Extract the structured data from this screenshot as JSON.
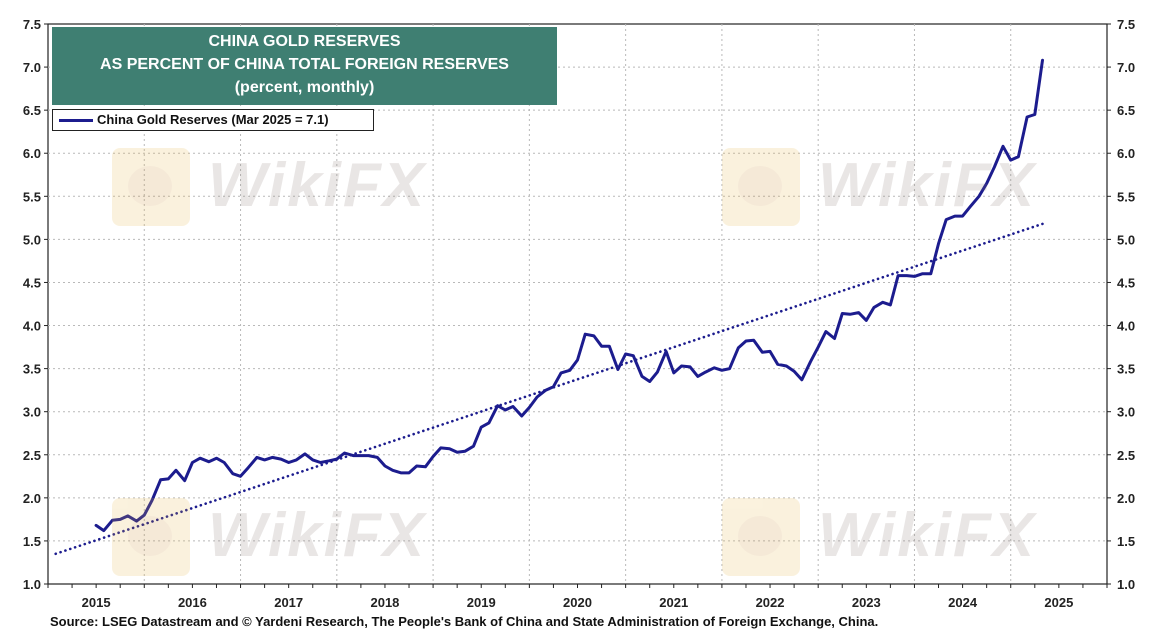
{
  "title_lines": [
    "CHINA GOLD RESERVES",
    "AS PERCENT OF CHINA TOTAL FOREIGN RESERVES",
    "(percent, monthly)"
  ],
  "legend_label": "China Gold Reserves (Mar 2025 = 7.1)",
  "source": "Source: LSEG Datastream and © Yardeni Research, The People's Bank of China and State Administration of Foreign Exchange, China.",
  "watermark_text": "WikiFX",
  "colors": {
    "series": "#1c1c8e",
    "title_bg": "#3f7f72",
    "grid": "#b9b9b9"
  },
  "chart_data": {
    "type": "line",
    "title": "CHINA GOLD RESERVES AS PERCENT OF CHINA TOTAL FOREIGN RESERVES",
    "subtitle": "(percent, monthly)",
    "xlabel": "",
    "ylabel": "",
    "xlim": [
      2014.5,
      2025.5
    ],
    "ylim": [
      1.0,
      7.5
    ],
    "y_ticks": [
      "1.0",
      "1.5",
      "2.0",
      "2.5",
      "3.0",
      "3.5",
      "4.0",
      "4.5",
      "5.0",
      "5.5",
      "6.0",
      "6.5",
      "7.0",
      "7.5"
    ],
    "x_ticks": [
      "2015",
      "2016",
      "2017",
      "2018",
      "2019",
      "2020",
      "2021",
      "2022",
      "2023",
      "2024",
      "2025"
    ],
    "grid": true,
    "legend_position": "top-left",
    "series": [
      {
        "name": "China Gold Reserves (Mar 2025 = 7.1)",
        "style": "solid",
        "points": [
          [
            2015.0,
            1.68
          ],
          [
            2015.08,
            1.62
          ],
          [
            2015.17,
            1.74
          ],
          [
            2015.25,
            1.75
          ],
          [
            2015.33,
            1.79
          ],
          [
            2015.42,
            1.73
          ],
          [
            2015.5,
            1.8
          ],
          [
            2015.58,
            1.97
          ],
          [
            2015.67,
            2.21
          ],
          [
            2015.75,
            2.22
          ],
          [
            2015.83,
            2.32
          ],
          [
            2015.92,
            2.2
          ],
          [
            2016.0,
            2.41
          ],
          [
            2016.08,
            2.46
          ],
          [
            2016.17,
            2.42
          ],
          [
            2016.25,
            2.46
          ],
          [
            2016.33,
            2.41
          ],
          [
            2016.42,
            2.28
          ],
          [
            2016.5,
            2.25
          ],
          [
            2016.58,
            2.35
          ],
          [
            2016.67,
            2.47
          ],
          [
            2016.75,
            2.44
          ],
          [
            2016.83,
            2.47
          ],
          [
            2016.92,
            2.45
          ],
          [
            2017.0,
            2.41
          ],
          [
            2017.08,
            2.44
          ],
          [
            2017.17,
            2.51
          ],
          [
            2017.25,
            2.44
          ],
          [
            2017.33,
            2.41
          ],
          [
            2017.42,
            2.43
          ],
          [
            2017.5,
            2.45
          ],
          [
            2017.58,
            2.52
          ],
          [
            2017.67,
            2.49
          ],
          [
            2017.75,
            2.49
          ],
          [
            2017.83,
            2.49
          ],
          [
            2017.92,
            2.47
          ],
          [
            2018.0,
            2.37
          ],
          [
            2018.08,
            2.32
          ],
          [
            2018.17,
            2.29
          ],
          [
            2018.25,
            2.29
          ],
          [
            2018.33,
            2.37
          ],
          [
            2018.42,
            2.36
          ],
          [
            2018.5,
            2.48
          ],
          [
            2018.58,
            2.58
          ],
          [
            2018.67,
            2.57
          ],
          [
            2018.75,
            2.53
          ],
          [
            2018.83,
            2.54
          ],
          [
            2018.92,
            2.6
          ],
          [
            2019.0,
            2.82
          ],
          [
            2019.08,
            2.87
          ],
          [
            2019.17,
            3.07
          ],
          [
            2019.25,
            3.02
          ],
          [
            2019.33,
            3.06
          ],
          [
            2019.42,
            2.95
          ],
          [
            2019.5,
            3.05
          ],
          [
            2019.58,
            3.17
          ],
          [
            2019.67,
            3.25
          ],
          [
            2019.75,
            3.29
          ],
          [
            2019.83,
            3.45
          ],
          [
            2019.92,
            3.48
          ],
          [
            2020.0,
            3.6
          ],
          [
            2020.08,
            3.9
          ],
          [
            2020.17,
            3.88
          ],
          [
            2020.25,
            3.76
          ],
          [
            2020.33,
            3.76
          ],
          [
            2020.42,
            3.49
          ],
          [
            2020.5,
            3.67
          ],
          [
            2020.58,
            3.65
          ],
          [
            2020.67,
            3.41
          ],
          [
            2020.75,
            3.35
          ],
          [
            2020.83,
            3.46
          ],
          [
            2020.92,
            3.7
          ],
          [
            2021.0,
            3.45
          ],
          [
            2021.08,
            3.53
          ],
          [
            2021.17,
            3.52
          ],
          [
            2021.25,
            3.41
          ],
          [
            2021.33,
            3.46
          ],
          [
            2021.42,
            3.51
          ],
          [
            2021.5,
            3.48
          ],
          [
            2021.58,
            3.5
          ],
          [
            2021.67,
            3.74
          ],
          [
            2021.75,
            3.82
          ],
          [
            2021.83,
            3.83
          ],
          [
            2021.92,
            3.69
          ],
          [
            2022.0,
            3.7
          ],
          [
            2022.08,
            3.55
          ],
          [
            2022.17,
            3.53
          ],
          [
            2022.25,
            3.47
          ],
          [
            2022.33,
            3.37
          ],
          [
            2022.42,
            3.58
          ],
          [
            2022.5,
            3.75
          ],
          [
            2022.58,
            3.93
          ],
          [
            2022.67,
            3.85
          ],
          [
            2022.75,
            4.14
          ],
          [
            2022.83,
            4.13
          ],
          [
            2022.92,
            4.15
          ],
          [
            2023.0,
            4.06
          ],
          [
            2023.08,
            4.21
          ],
          [
            2023.17,
            4.27
          ],
          [
            2023.25,
            4.24
          ],
          [
            2023.33,
            4.58
          ],
          [
            2023.42,
            4.58
          ],
          [
            2023.5,
            4.57
          ],
          [
            2023.58,
            4.6
          ],
          [
            2023.67,
            4.6
          ],
          [
            2023.75,
            4.95
          ],
          [
            2023.83,
            5.23
          ],
          [
            2023.92,
            5.27
          ],
          [
            2024.0,
            5.27
          ],
          [
            2024.08,
            5.38
          ],
          [
            2024.17,
            5.5
          ],
          [
            2024.25,
            5.65
          ],
          [
            2024.33,
            5.84
          ],
          [
            2024.42,
            6.08
          ],
          [
            2024.5,
            5.92
          ],
          [
            2024.58,
            5.96
          ],
          [
            2024.67,
            6.42
          ],
          [
            2024.75,
            6.45
          ],
          [
            2024.83,
            7.08
          ]
        ]
      },
      {
        "name": "",
        "style": "dotted",
        "points": [
          [
            2014.58,
            1.35
          ],
          [
            2024.83,
            5.18
          ]
        ]
      }
    ]
  }
}
